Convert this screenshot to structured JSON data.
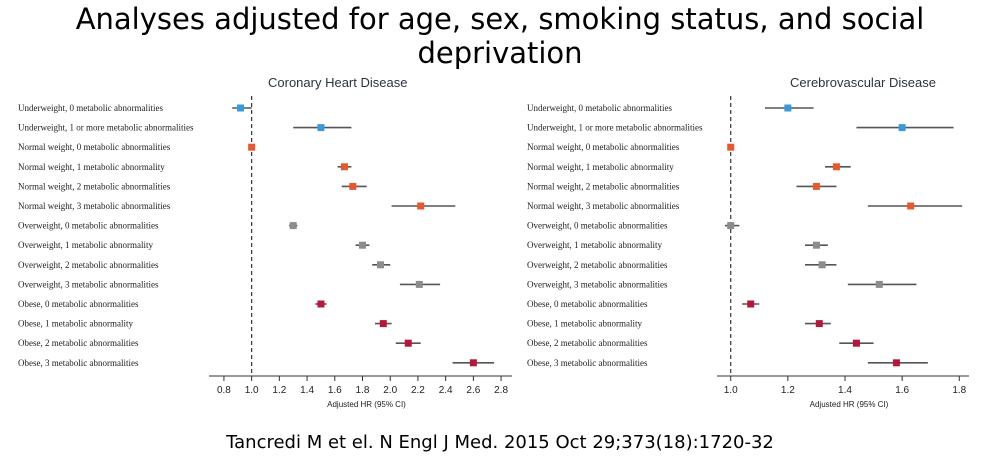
{
  "slide": {
    "title": "Analyses adjusted for age, sex, smoking status, and social deprivation",
    "citation": "Tancredi M et el. N Engl J Med. 2015 Oct 29;373(18):1720-32"
  },
  "colors": {
    "underweight": "#3a9ad9",
    "normal": "#e8582e",
    "overweight": "#8c8c8c",
    "obese": "#b5163a",
    "ci_line": "#555555",
    "reference": "#333333"
  },
  "chart_data": [
    {
      "type": "forest",
      "title": "Coronary Heart Disease",
      "xlabel": "Adjusted HR (95% CI)",
      "xlim": [
        0.75,
        2.85
      ],
      "xticks": [
        0.8,
        1.0,
        1.2,
        1.4,
        1.6,
        1.8,
        2.0,
        2.2,
        2.4,
        2.6,
        2.8
      ],
      "xtick_labels": [
        "0.8",
        "1.0",
        "1.2",
        "1.4",
        "1.6",
        "1.8",
        "2.0",
        "2.2",
        "2.4",
        "2.6",
        "2.8"
      ],
      "reference": 1.0,
      "rows": [
        {
          "label": "Underweight, 0 metabolic abnormalities",
          "group": "underweight",
          "hr": 0.92,
          "lo": 0.86,
          "hi": 1.0
        },
        {
          "label": "Underweight, 1 or more metabolic abnormalities",
          "group": "underweight",
          "hr": 1.5,
          "lo": 1.3,
          "hi": 1.72
        },
        {
          "label": "Normal weight, 0 metabolic abnormalities",
          "group": "normal",
          "hr": 1.0,
          "lo": 1.0,
          "hi": 1.0
        },
        {
          "label": "Normal weight, 1 metabolic abnormality",
          "group": "normal",
          "hr": 1.67,
          "lo": 1.62,
          "hi": 1.72
        },
        {
          "label": "Normal weight, 2 metabolic abnormalities",
          "group": "normal",
          "hr": 1.73,
          "lo": 1.65,
          "hi": 1.83
        },
        {
          "label": "Normal weight, 3 metabolic abnormalities",
          "group": "normal",
          "hr": 2.22,
          "lo": 2.01,
          "hi": 2.47
        },
        {
          "label": "Overweight, 0 metabolic abnormalities",
          "group": "overweight",
          "hr": 1.3,
          "lo": 1.27,
          "hi": 1.33
        },
        {
          "label": "Overweight, 1 metabolic abnormality",
          "group": "overweight",
          "hr": 1.8,
          "lo": 1.75,
          "hi": 1.85
        },
        {
          "label": "Overweight, 2 metabolic abnormalities",
          "group": "overweight",
          "hr": 1.93,
          "lo": 1.87,
          "hi": 2.0
        },
        {
          "label": "Overweight, 3 metabolic abnormalities",
          "group": "overweight",
          "hr": 2.21,
          "lo": 2.07,
          "hi": 2.36
        },
        {
          "label": "Obese, 0 metabolic abnormalities",
          "group": "obese",
          "hr": 1.5,
          "lo": 1.46,
          "hi": 1.54
        },
        {
          "label": "Obese, 1 metabolic abnormality",
          "group": "obese",
          "hr": 1.95,
          "lo": 1.89,
          "hi": 2.01
        },
        {
          "label": "Obese, 2 metabolic abnormalities",
          "group": "obese",
          "hr": 2.13,
          "lo": 2.04,
          "hi": 2.22
        },
        {
          "label": "Obese, 3 metabolic abnormalities",
          "group": "obese",
          "hr": 2.6,
          "lo": 2.45,
          "hi": 2.75
        }
      ]
    },
    {
      "type": "forest",
      "title": "Cerebrovascular Disease",
      "xlabel": "Adjusted HR (95% CI)",
      "xlim": [
        0.98,
        1.82
      ],
      "xticks": [
        1.0,
        1.2,
        1.4,
        1.6,
        1.8
      ],
      "xtick_labels": [
        "1.0",
        "1.2",
        "1.4",
        "1.6",
        "1.8"
      ],
      "reference": 1.0,
      "rows": [
        {
          "label": "Underweight, 0 metabolic abnormalities",
          "group": "underweight",
          "hr": 1.2,
          "lo": 1.12,
          "hi": 1.29
        },
        {
          "label": "Underweight, 1 or more metabolic abnormalities",
          "group": "underweight",
          "hr": 1.6,
          "lo": 1.44,
          "hi": 1.78
        },
        {
          "label": "Normal weight, 0 metabolic abnormalities",
          "group": "normal",
          "hr": 1.0,
          "lo": 1.0,
          "hi": 1.0
        },
        {
          "label": "Normal weight, 1 metabolic abnormality",
          "group": "normal",
          "hr": 1.37,
          "lo": 1.33,
          "hi": 1.42
        },
        {
          "label": "Normal weight, 2 metabolic abnormalities",
          "group": "normal",
          "hr": 1.3,
          "lo": 1.23,
          "hi": 1.37
        },
        {
          "label": "Normal weight, 3 metabolic abnormalities",
          "group": "normal",
          "hr": 1.63,
          "lo": 1.48,
          "hi": 1.81
        },
        {
          "label": "Overweight, 0 metabolic abnormalities",
          "group": "overweight",
          "hr": 1.0,
          "lo": 0.98,
          "hi": 1.03
        },
        {
          "label": "Overweight, 1 metabolic abnormality",
          "group": "overweight",
          "hr": 1.3,
          "lo": 1.26,
          "hi": 1.34
        },
        {
          "label": "Overweight, 2 metabolic abnormalities",
          "group": "overweight",
          "hr": 1.32,
          "lo": 1.26,
          "hi": 1.37
        },
        {
          "label": "Overweight, 3 metabolic abnormalities",
          "group": "overweight",
          "hr": 1.52,
          "lo": 1.41,
          "hi": 1.65
        },
        {
          "label": "Obese, 0 metabolic abnormalities",
          "group": "obese",
          "hr": 1.07,
          "lo": 1.04,
          "hi": 1.1
        },
        {
          "label": "Obese, 1 metabolic abnormality",
          "group": "obese",
          "hr": 1.31,
          "lo": 1.26,
          "hi": 1.35
        },
        {
          "label": "Obese, 2 metabolic abnormalities",
          "group": "obese",
          "hr": 1.44,
          "lo": 1.38,
          "hi": 1.5
        },
        {
          "label": "Obese, 3 metabolic abnormalities",
          "group": "obese",
          "hr": 1.58,
          "lo": 1.48,
          "hi": 1.69
        }
      ]
    }
  ]
}
